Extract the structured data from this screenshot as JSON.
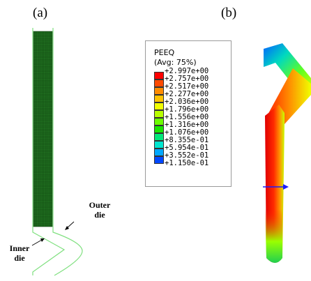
{
  "panels": {
    "a_label": "(a)",
    "b_label": "(b)"
  },
  "annotations": {
    "outer_die_line1": "Outer",
    "outer_die_line2": "die",
    "inner_die_line1": "Inner",
    "inner_die_line2": "die"
  },
  "legend": {
    "title_line1": "PEEQ",
    "title_line2": "(Avg: 75%)",
    "ticks": [
      "+2.997e+00",
      "+2.757e+00",
      "+2.517e+00",
      "+2.277e+00",
      "+2.036e+00",
      "+1.796e+00",
      "+1.556e+00",
      "+1.316e+00",
      "+1.076e+00",
      "+8.355e-01",
      "+5.954e-01",
      "+3.552e-01",
      "+1.150e-01"
    ],
    "colors": [
      "#ff0000",
      "#ff4a00",
      "#ff8c00",
      "#ffc400",
      "#f0ff00",
      "#b8ff00",
      "#6dff00",
      "#19e800",
      "#00e87a",
      "#00e6cf",
      "#00a8ff",
      "#0048ff",
      "#0000ff"
    ]
  },
  "colors": {
    "mesh_green": "#1e6b1e",
    "die_outline": "#7fe07f",
    "arrow_blue": "#1a1aff"
  }
}
